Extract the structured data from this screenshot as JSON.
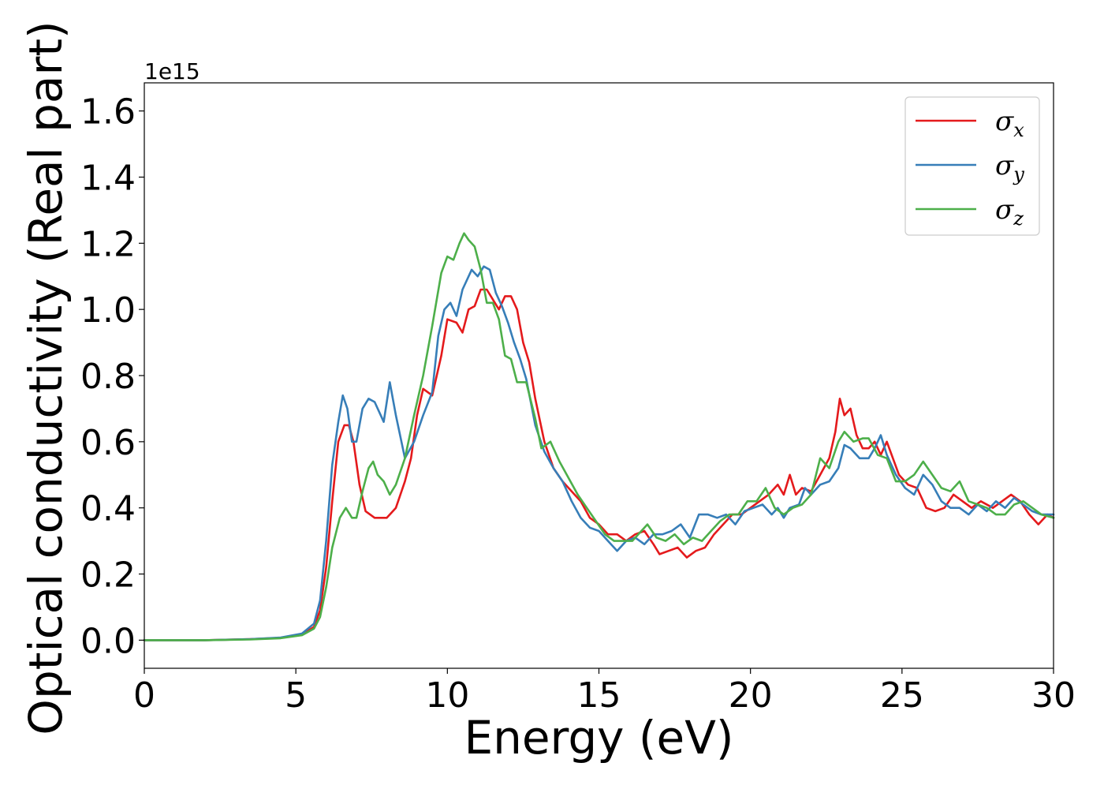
{
  "chart_data": {
    "type": "line",
    "xlabel": "Energy (eV)",
    "ylabel": "Optical conductivity (Real part)",
    "y_offset_label": "1e15",
    "xlim": [
      0,
      30
    ],
    "ylim": [
      -0.085,
      1.685
    ],
    "x_ticks": [
      0,
      5,
      10,
      15,
      20,
      25,
      30
    ],
    "x_tick_labels": [
      "0",
      "5",
      "10",
      "15",
      "20",
      "25",
      "30"
    ],
    "y_ticks": [
      0.0,
      0.2,
      0.4,
      0.6,
      0.8,
      1.0,
      1.2,
      1.4,
      1.6
    ],
    "y_tick_labels": [
      "0.0",
      "0.2",
      "0.4",
      "0.6",
      "0.8",
      "1.0",
      "1.2",
      "1.4",
      "1.6"
    ],
    "grid": false,
    "legend_position": "top-right",
    "series": [
      {
        "name": "σx",
        "symbol": "σ",
        "subscript": "x",
        "color": "#e41a1c",
        "points": [
          [
            0,
            0
          ],
          [
            2,
            0
          ],
          [
            3.5,
            0.003
          ],
          [
            4.5,
            0.007
          ],
          [
            5.2,
            0.017
          ],
          [
            5.6,
            0.04
          ],
          [
            5.8,
            0.09
          ],
          [
            6.0,
            0.22
          ],
          [
            6.2,
            0.42
          ],
          [
            6.4,
            0.6
          ],
          [
            6.6,
            0.65
          ],
          [
            6.75,
            0.65
          ],
          [
            6.9,
            0.6
          ],
          [
            7.1,
            0.47
          ],
          [
            7.3,
            0.39
          ],
          [
            7.6,
            0.37
          ],
          [
            8.0,
            0.37
          ],
          [
            8.3,
            0.4
          ],
          [
            8.6,
            0.48
          ],
          [
            8.8,
            0.55
          ],
          [
            9.0,
            0.68
          ],
          [
            9.2,
            0.76
          ],
          [
            9.5,
            0.74
          ],
          [
            9.8,
            0.86
          ],
          [
            10.0,
            0.97
          ],
          [
            10.3,
            0.96
          ],
          [
            10.5,
            0.93
          ],
          [
            10.7,
            1.0
          ],
          [
            10.9,
            1.01
          ],
          [
            11.1,
            1.06
          ],
          [
            11.3,
            1.06
          ],
          [
            11.5,
            1.03
          ],
          [
            11.7,
            1.0
          ],
          [
            11.9,
            1.04
          ],
          [
            12.1,
            1.04
          ],
          [
            12.3,
            1.0
          ],
          [
            12.5,
            0.9
          ],
          [
            12.7,
            0.84
          ],
          [
            12.9,
            0.73
          ],
          [
            13.2,
            0.6
          ],
          [
            13.5,
            0.52
          ],
          [
            13.8,
            0.48
          ],
          [
            14.1,
            0.45
          ],
          [
            14.4,
            0.42
          ],
          [
            14.7,
            0.37
          ],
          [
            15.0,
            0.35
          ],
          [
            15.3,
            0.32
          ],
          [
            15.6,
            0.32
          ],
          [
            15.9,
            0.3
          ],
          [
            16.2,
            0.32
          ],
          [
            16.5,
            0.33
          ],
          [
            16.8,
            0.29
          ],
          [
            17.0,
            0.26
          ],
          [
            17.3,
            0.27
          ],
          [
            17.6,
            0.28
          ],
          [
            17.9,
            0.25
          ],
          [
            18.2,
            0.27
          ],
          [
            18.5,
            0.28
          ],
          [
            18.8,
            0.32
          ],
          [
            19.1,
            0.35
          ],
          [
            19.4,
            0.38
          ],
          [
            19.7,
            0.38
          ],
          [
            20.0,
            0.4
          ],
          [
            20.3,
            0.42
          ],
          [
            20.6,
            0.44
          ],
          [
            20.9,
            0.47
          ],
          [
            21.1,
            0.44
          ],
          [
            21.3,
            0.5
          ],
          [
            21.5,
            0.44
          ],
          [
            21.7,
            0.46
          ],
          [
            22.0,
            0.45
          ],
          [
            22.3,
            0.5
          ],
          [
            22.6,
            0.55
          ],
          [
            22.8,
            0.63
          ],
          [
            22.95,
            0.73
          ],
          [
            23.1,
            0.68
          ],
          [
            23.3,
            0.7
          ],
          [
            23.5,
            0.62
          ],
          [
            23.7,
            0.58
          ],
          [
            23.9,
            0.58
          ],
          [
            24.1,
            0.6
          ],
          [
            24.3,
            0.56
          ],
          [
            24.5,
            0.6
          ],
          [
            24.7,
            0.55
          ],
          [
            24.9,
            0.5
          ],
          [
            25.2,
            0.47
          ],
          [
            25.5,
            0.46
          ],
          [
            25.8,
            0.4
          ],
          [
            26.1,
            0.39
          ],
          [
            26.4,
            0.4
          ],
          [
            26.7,
            0.44
          ],
          [
            27.0,
            0.42
          ],
          [
            27.3,
            0.4
          ],
          [
            27.6,
            0.42
          ],
          [
            28.0,
            0.4
          ],
          [
            28.3,
            0.42
          ],
          [
            28.6,
            0.44
          ],
          [
            28.9,
            0.42
          ],
          [
            29.2,
            0.38
          ],
          [
            29.5,
            0.35
          ],
          [
            29.8,
            0.38
          ],
          [
            30.0,
            0.37
          ]
        ]
      },
      {
        "name": "σy",
        "symbol": "σ",
        "subscript": "y",
        "color": "#377eb8",
        "points": [
          [
            0,
            0
          ],
          [
            2,
            0
          ],
          [
            3.5,
            0.003
          ],
          [
            4.5,
            0.008
          ],
          [
            5.2,
            0.02
          ],
          [
            5.6,
            0.05
          ],
          [
            5.8,
            0.12
          ],
          [
            6.0,
            0.3
          ],
          [
            6.2,
            0.53
          ],
          [
            6.4,
            0.66
          ],
          [
            6.55,
            0.74
          ],
          [
            6.7,
            0.7
          ],
          [
            6.85,
            0.6
          ],
          [
            7.0,
            0.6
          ],
          [
            7.2,
            0.7
          ],
          [
            7.4,
            0.73
          ],
          [
            7.6,
            0.72
          ],
          [
            7.8,
            0.68
          ],
          [
            7.9,
            0.66
          ],
          [
            8.1,
            0.78
          ],
          [
            8.3,
            0.68
          ],
          [
            8.6,
            0.55
          ],
          [
            8.9,
            0.6
          ],
          [
            9.2,
            0.68
          ],
          [
            9.5,
            0.75
          ],
          [
            9.7,
            0.92
          ],
          [
            9.9,
            1.0
          ],
          [
            10.1,
            1.02
          ],
          [
            10.3,
            0.98
          ],
          [
            10.5,
            1.06
          ],
          [
            10.8,
            1.12
          ],
          [
            11.0,
            1.1
          ],
          [
            11.2,
            1.13
          ],
          [
            11.4,
            1.12
          ],
          [
            11.6,
            1.05
          ],
          [
            11.8,
            1.01
          ],
          [
            12.0,
            0.96
          ],
          [
            12.2,
            0.9
          ],
          [
            12.4,
            0.85
          ],
          [
            12.6,
            0.79
          ],
          [
            12.9,
            0.65
          ],
          [
            13.2,
            0.57
          ],
          [
            13.5,
            0.52
          ],
          [
            13.8,
            0.48
          ],
          [
            14.1,
            0.42
          ],
          [
            14.4,
            0.37
          ],
          [
            14.7,
            0.34
          ],
          [
            15.0,
            0.33
          ],
          [
            15.3,
            0.3
          ],
          [
            15.6,
            0.27
          ],
          [
            15.9,
            0.3
          ],
          [
            16.2,
            0.31
          ],
          [
            16.5,
            0.29
          ],
          [
            16.8,
            0.32
          ],
          [
            17.1,
            0.32
          ],
          [
            17.4,
            0.33
          ],
          [
            17.7,
            0.35
          ],
          [
            18.0,
            0.31
          ],
          [
            18.3,
            0.38
          ],
          [
            18.6,
            0.38
          ],
          [
            18.9,
            0.37
          ],
          [
            19.2,
            0.38
          ],
          [
            19.5,
            0.35
          ],
          [
            19.8,
            0.39
          ],
          [
            20.1,
            0.4
          ],
          [
            20.4,
            0.41
          ],
          [
            20.7,
            0.38
          ],
          [
            20.9,
            0.4
          ],
          [
            21.1,
            0.37
          ],
          [
            21.3,
            0.4
          ],
          [
            21.6,
            0.41
          ],
          [
            21.8,
            0.46
          ],
          [
            22.0,
            0.44
          ],
          [
            22.3,
            0.47
          ],
          [
            22.6,
            0.48
          ],
          [
            22.9,
            0.52
          ],
          [
            23.1,
            0.59
          ],
          [
            23.3,
            0.58
          ],
          [
            23.6,
            0.55
          ],
          [
            23.9,
            0.55
          ],
          [
            24.1,
            0.58
          ],
          [
            24.3,
            0.62
          ],
          [
            24.5,
            0.56
          ],
          [
            24.8,
            0.5
          ],
          [
            25.1,
            0.46
          ],
          [
            25.4,
            0.44
          ],
          [
            25.7,
            0.5
          ],
          [
            26.0,
            0.47
          ],
          [
            26.3,
            0.42
          ],
          [
            26.6,
            0.4
          ],
          [
            26.9,
            0.4
          ],
          [
            27.2,
            0.38
          ],
          [
            27.5,
            0.41
          ],
          [
            27.8,
            0.39
          ],
          [
            28.1,
            0.42
          ],
          [
            28.4,
            0.4
          ],
          [
            28.7,
            0.43
          ],
          [
            29.0,
            0.41
          ],
          [
            29.3,
            0.39
          ],
          [
            29.6,
            0.38
          ],
          [
            30.0,
            0.38
          ]
        ]
      },
      {
        "name": "σz",
        "symbol": "σ",
        "subscript": "z",
        "color": "#4daf4a",
        "points": [
          [
            0,
            0
          ],
          [
            2,
            0
          ],
          [
            3.5,
            0.002
          ],
          [
            4.5,
            0.006
          ],
          [
            5.2,
            0.015
          ],
          [
            5.6,
            0.035
          ],
          [
            5.8,
            0.07
          ],
          [
            6.0,
            0.16
          ],
          [
            6.2,
            0.28
          ],
          [
            6.45,
            0.37
          ],
          [
            6.65,
            0.4
          ],
          [
            6.85,
            0.37
          ],
          [
            7.0,
            0.37
          ],
          [
            7.2,
            0.45
          ],
          [
            7.4,
            0.52
          ],
          [
            7.55,
            0.54
          ],
          [
            7.7,
            0.5
          ],
          [
            7.9,
            0.48
          ],
          [
            8.1,
            0.44
          ],
          [
            8.3,
            0.47
          ],
          [
            8.6,
            0.55
          ],
          [
            8.9,
            0.68
          ],
          [
            9.2,
            0.8
          ],
          [
            9.5,
            0.95
          ],
          [
            9.8,
            1.11
          ],
          [
            10.0,
            1.16
          ],
          [
            10.2,
            1.15
          ],
          [
            10.4,
            1.2
          ],
          [
            10.55,
            1.23
          ],
          [
            10.7,
            1.21
          ],
          [
            10.9,
            1.19
          ],
          [
            11.1,
            1.12
          ],
          [
            11.3,
            1.02
          ],
          [
            11.5,
            1.02
          ],
          [
            11.7,
            0.97
          ],
          [
            11.9,
            0.86
          ],
          [
            12.1,
            0.85
          ],
          [
            12.3,
            0.78
          ],
          [
            12.6,
            0.78
          ],
          [
            12.9,
            0.67
          ],
          [
            13.1,
            0.58
          ],
          [
            13.4,
            0.6
          ],
          [
            13.7,
            0.54
          ],
          [
            14.0,
            0.49
          ],
          [
            14.3,
            0.44
          ],
          [
            14.6,
            0.4
          ],
          [
            14.9,
            0.36
          ],
          [
            15.2,
            0.32
          ],
          [
            15.5,
            0.3
          ],
          [
            15.8,
            0.3
          ],
          [
            16.1,
            0.3
          ],
          [
            16.4,
            0.33
          ],
          [
            16.6,
            0.35
          ],
          [
            16.9,
            0.31
          ],
          [
            17.2,
            0.3
          ],
          [
            17.5,
            0.32
          ],
          [
            17.8,
            0.29
          ],
          [
            18.1,
            0.31
          ],
          [
            18.4,
            0.3
          ],
          [
            18.7,
            0.33
          ],
          [
            19.0,
            0.36
          ],
          [
            19.3,
            0.38
          ],
          [
            19.6,
            0.38
          ],
          [
            19.9,
            0.42
          ],
          [
            20.2,
            0.42
          ],
          [
            20.5,
            0.46
          ],
          [
            20.8,
            0.4
          ],
          [
            21.1,
            0.38
          ],
          [
            21.4,
            0.4
          ],
          [
            21.7,
            0.41
          ],
          [
            22.0,
            0.44
          ],
          [
            22.3,
            0.55
          ],
          [
            22.6,
            0.52
          ],
          [
            22.9,
            0.6
          ],
          [
            23.1,
            0.63
          ],
          [
            23.4,
            0.6
          ],
          [
            23.7,
            0.61
          ],
          [
            23.9,
            0.61
          ],
          [
            24.2,
            0.56
          ],
          [
            24.5,
            0.55
          ],
          [
            24.8,
            0.48
          ],
          [
            25.1,
            0.48
          ],
          [
            25.4,
            0.5
          ],
          [
            25.7,
            0.54
          ],
          [
            26.0,
            0.5
          ],
          [
            26.3,
            0.46
          ],
          [
            26.6,
            0.45
          ],
          [
            26.9,
            0.48
          ],
          [
            27.2,
            0.42
          ],
          [
            27.5,
            0.41
          ],
          [
            27.8,
            0.4
          ],
          [
            28.1,
            0.38
          ],
          [
            28.4,
            0.38
          ],
          [
            28.7,
            0.41
          ],
          [
            29.0,
            0.42
          ],
          [
            29.3,
            0.4
          ],
          [
            29.6,
            0.38
          ],
          [
            30.0,
            0.37
          ]
        ]
      }
    ]
  }
}
